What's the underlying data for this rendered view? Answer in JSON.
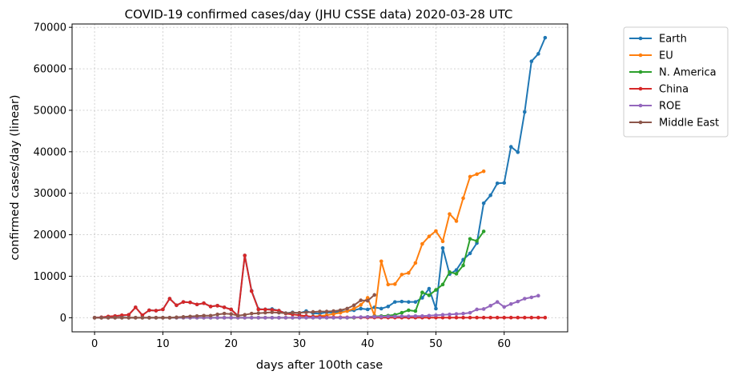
{
  "chart_data": {
    "type": "line",
    "title": "COVID-19 confirmed cases/day (JHU CSSE data) 2020-03-28 UTC",
    "xlabel": "days after 100th case",
    "ylabel": "confirmed cases/day (linear)",
    "xlim": [
      -3.3,
      69.3
    ],
    "ylim": [
      -3400,
      70800
    ],
    "xticks": [
      0,
      10,
      20,
      30,
      40,
      50,
      60
    ],
    "yticks": [
      0,
      10000,
      20000,
      30000,
      40000,
      50000,
      60000,
      70000
    ],
    "xtick_labels": [
      "0",
      "10",
      "20",
      "30",
      "40",
      "50",
      "60"
    ],
    "ytick_labels": [
      "0",
      "10000",
      "20000",
      "30000",
      "40000",
      "50000",
      "60000",
      "70000"
    ],
    "grid": true,
    "legend_position": "outside-top-right",
    "series": [
      {
        "name": "Earth",
        "color": "#1f77b4",
        "x": [
          0,
          1,
          2,
          3,
          4,
          5,
          6,
          7,
          8,
          9,
          10,
          11,
          12,
          13,
          14,
          15,
          16,
          17,
          18,
          19,
          20,
          21,
          22,
          23,
          24,
          25,
          26,
          27,
          28,
          29,
          30,
          31,
          32,
          33,
          34,
          35,
          36,
          37,
          38,
          39,
          40,
          41,
          42,
          43,
          44,
          45,
          46,
          47,
          48,
          49,
          50,
          51,
          52,
          53,
          54,
          55,
          56,
          57,
          58,
          59,
          60,
          61,
          62,
          63,
          64,
          65,
          66
        ],
        "y": [
          0,
          100,
          200,
          400,
          500,
          700,
          2500,
          600,
          1800,
          1700,
          2000,
          4600,
          3000,
          3800,
          3700,
          3200,
          3500,
          2700,
          2900,
          2500,
          2000,
          500,
          15000,
          6500,
          2100,
          2000,
          2100,
          1700,
          1100,
          1300,
          1100,
          1600,
          1100,
          1000,
          1300,
          1200,
          1500,
          1600,
          1800,
          2200,
          2000,
          2500,
          2200,
          2700,
          3800,
          3900,
          3800,
          3800,
          4800,
          7000,
          2200,
          16800,
          10500,
          11500,
          14000,
          15500,
          18000,
          27600,
          29500,
          32400,
          32500,
          41200,
          39900,
          49600,
          61800,
          63600,
          67500
        ]
      },
      {
        "name": "EU",
        "color": "#ff7f0e",
        "x": [
          0,
          1,
          2,
          3,
          4,
          5,
          6,
          7,
          8,
          9,
          10,
          11,
          12,
          13,
          14,
          15,
          16,
          17,
          18,
          19,
          20,
          21,
          22,
          23,
          24,
          25,
          26,
          27,
          28,
          29,
          30,
          31,
          32,
          33,
          34,
          35,
          36,
          37,
          38,
          39,
          40,
          41,
          42,
          43,
          44,
          45,
          46,
          47,
          48,
          49,
          50,
          51,
          52,
          53,
          54,
          55,
          56,
          57
        ],
        "y": [
          0,
          0,
          0,
          0,
          0,
          0,
          0,
          0,
          0,
          0,
          0,
          0,
          0,
          0,
          0,
          0,
          0,
          0,
          0,
          0,
          0,
          0,
          0,
          0,
          0,
          0,
          0,
          0,
          0,
          0,
          100,
          200,
          300,
          400,
          600,
          900,
          1200,
          1600,
          2200,
          3100,
          4800,
          500,
          13600,
          8000,
          8100,
          10400,
          10800,
          13200,
          17800,
          19600,
          20900,
          18400,
          25000,
          23300,
          28800,
          34000,
          34600,
          35300
        ]
      },
      {
        "name": "N. America",
        "color": "#2ca02c",
        "x": [
          0,
          1,
          2,
          3,
          4,
          5,
          6,
          7,
          8,
          9,
          10,
          11,
          12,
          13,
          14,
          15,
          16,
          17,
          18,
          19,
          20,
          21,
          22,
          23,
          24,
          25,
          26,
          27,
          28,
          29,
          30,
          31,
          32,
          33,
          34,
          35,
          36,
          37,
          38,
          39,
          40,
          41,
          42,
          43,
          44,
          45,
          46,
          47,
          48,
          49,
          50,
          51,
          52,
          53,
          54,
          55,
          56,
          57
        ],
        "y": [
          0,
          0,
          0,
          0,
          0,
          0,
          0,
          0,
          0,
          0,
          0,
          0,
          0,
          0,
          0,
          0,
          0,
          0,
          0,
          0,
          0,
          0,
          0,
          0,
          0,
          0,
          0,
          0,
          0,
          0,
          0,
          0,
          0,
          0,
          0,
          0,
          0,
          0,
          0,
          100,
          200,
          300,
          400,
          500,
          700,
          1200,
          1800,
          1600,
          6100,
          5400,
          6700,
          8000,
          11000,
          10600,
          12600,
          19000,
          18500,
          20800
        ]
      },
      {
        "name": "China",
        "color": "#d62728",
        "x": [
          0,
          1,
          2,
          3,
          4,
          5,
          6,
          7,
          8,
          9,
          10,
          11,
          12,
          13,
          14,
          15,
          16,
          17,
          18,
          19,
          20,
          21,
          22,
          23,
          24,
          25,
          26,
          27,
          28,
          29,
          30,
          31,
          32,
          33,
          34,
          35,
          36,
          37,
          38,
          39,
          40,
          41,
          42,
          43,
          44,
          45,
          46,
          47,
          48,
          49,
          50,
          51,
          52,
          53,
          54,
          55,
          56,
          57,
          58,
          59,
          60,
          61,
          62,
          63,
          64,
          65,
          66
        ],
        "y": [
          0,
          100,
          300,
          400,
          600,
          700,
          2500,
          600,
          1800,
          1700,
          2000,
          4600,
          3000,
          3800,
          3700,
          3200,
          3500,
          2700,
          2900,
          2500,
          2000,
          400,
          15000,
          6400,
          2000,
          2000,
          1900,
          1700,
          1000,
          800,
          600,
          400,
          200,
          200,
          150,
          100,
          100,
          80,
          60,
          50,
          40,
          40,
          30,
          30,
          30,
          30,
          30,
          30,
          30,
          30,
          30,
          30,
          30,
          30,
          30,
          30,
          30,
          30,
          30,
          30,
          30,
          30,
          30,
          30,
          30,
          30,
          30
        ]
      },
      {
        "name": "ROE",
        "color": "#9467bd",
        "x": [
          0,
          1,
          2,
          3,
          4,
          5,
          6,
          7,
          8,
          9,
          10,
          11,
          12,
          13,
          14,
          15,
          16,
          17,
          18,
          19,
          20,
          21,
          22,
          23,
          24,
          25,
          26,
          27,
          28,
          29,
          30,
          31,
          32,
          33,
          34,
          35,
          36,
          37,
          38,
          39,
          40,
          41,
          42,
          43,
          44,
          45,
          46,
          47,
          48,
          49,
          50,
          51,
          52,
          53,
          54,
          55,
          56,
          57,
          58,
          59,
          60,
          61,
          62,
          63,
          64,
          65
        ],
        "y": [
          0,
          0,
          0,
          0,
          0,
          0,
          0,
          0,
          0,
          0,
          0,
          0,
          0,
          0,
          0,
          0,
          0,
          0,
          0,
          0,
          0,
          0,
          0,
          0,
          0,
          0,
          0,
          0,
          0,
          0,
          0,
          0,
          0,
          0,
          0,
          0,
          0,
          0,
          100,
          150,
          200,
          250,
          250,
          300,
          300,
          350,
          350,
          400,
          400,
          500,
          600,
          700,
          800,
          900,
          1000,
          1200,
          2000,
          2100,
          2900,
          3800,
          2600,
          3300,
          3900,
          4600,
          4900,
          5300
        ]
      },
      {
        "name": "Middle East",
        "color": "#8c564b",
        "x": [
          0,
          1,
          2,
          3,
          4,
          5,
          6,
          7,
          8,
          9,
          10,
          11,
          12,
          13,
          14,
          15,
          16,
          17,
          18,
          19,
          20,
          21,
          22,
          23,
          24,
          25,
          26,
          27,
          28,
          29,
          30,
          31,
          32,
          33,
          34,
          35,
          36,
          37,
          38,
          39,
          40,
          41
        ],
        "y": [
          0,
          0,
          0,
          0,
          0,
          0,
          0,
          0,
          0,
          0,
          0,
          0,
          100,
          200,
          300,
          400,
          500,
          500,
          800,
          1000,
          900,
          500,
          700,
          1000,
          1100,
          1200,
          1300,
          1200,
          1100,
          1200,
          1200,
          1300,
          1400,
          1500,
          1500,
          1600,
          1800,
          2200,
          3000,
          4200,
          4100,
          5500
        ]
      }
    ]
  }
}
